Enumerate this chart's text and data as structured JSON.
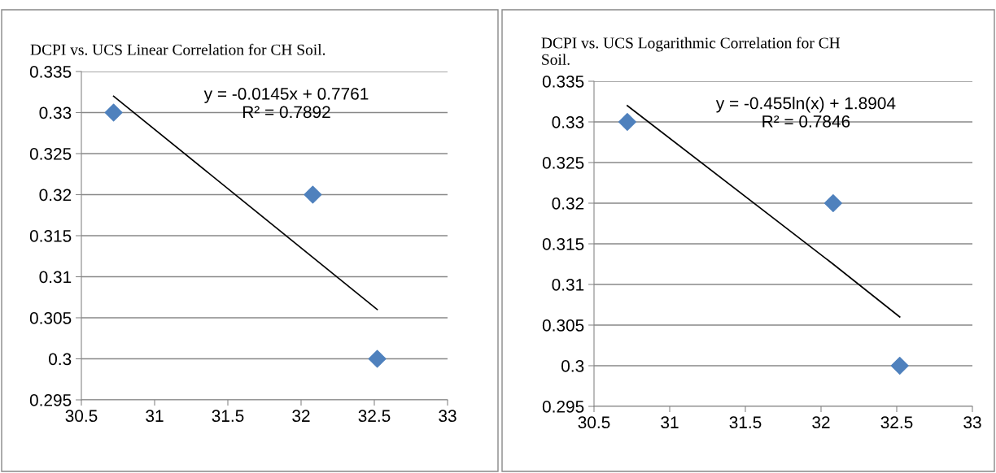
{
  "chart_data": [
    {
      "type": "scatter",
      "title": "DCPI vs. UCS Linear Correlation for CH Soil.",
      "x": [
        30.72,
        32.08,
        32.52
      ],
      "grid": "y",
      "xlim": [
        30.5,
        33
      ],
      "xticks": [
        30.5,
        31,
        31.5,
        32,
        32.5,
        33
      ],
      "ylim": [
        0.295,
        0.335
      ],
      "yticks": [
        0.295,
        0.3,
        0.305,
        0.31,
        0.315,
        0.32,
        0.325,
        0.33,
        0.335
      ],
      "series": [
        {
          "color": "#4f81bd",
          "marker": "diamond",
          "values": [
            0.33,
            0.32,
            0.3
          ]
        },
        {
          "type": "line",
          "color": "#000000",
          "marker": "none",
          "x": [
            30.72,
            32.52
          ],
          "values": [
            0.332,
            0.306
          ]
        }
      ],
      "annotations": [
        "y = -0.0145x + 0.7761\nR² = 0.7892"
      ]
    },
    {
      "type": "scatter",
      "title": "DCPI vs. UCS Logarithmic Correlation for CH\nSoil.",
      "x": [
        30.72,
        32.08,
        32.52
      ],
      "grid": "y",
      "xlim": [
        30.5,
        33
      ],
      "xticks": [
        30.5,
        31,
        31.5,
        32,
        32.5,
        33
      ],
      "ylim": [
        0.295,
        0.335
      ],
      "yticks": [
        0.295,
        0.3,
        0.305,
        0.31,
        0.315,
        0.32,
        0.325,
        0.33,
        0.335
      ],
      "series": [
        {
          "color": "#4f81bd",
          "marker": "diamond",
          "values": [
            0.33,
            0.32,
            0.3
          ]
        },
        {
          "type": "line",
          "color": "#000000",
          "marker": "none",
          "x": [
            30.72,
            32.08,
            32.52
          ],
          "values": [
            0.332,
            0.3125,
            0.306
          ]
        }
      ],
      "annotations": [
        "y = -0.455ln(x) + 1.8904\nR² = 0.7846"
      ]
    }
  ]
}
